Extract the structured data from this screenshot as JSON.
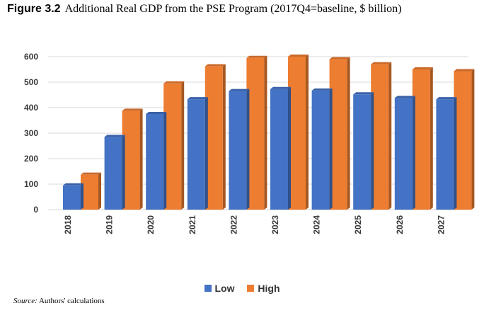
{
  "figure": {
    "label": "Figure 3.2",
    "title": "Additional Real GDP from the PSE Program (2017Q4=baseline, $ billion)"
  },
  "source": {
    "label": "Source:",
    "text": " Authors' calculations"
  },
  "chart_data": {
    "type": "bar",
    "categories": [
      "2018",
      "2019",
      "2020",
      "2021",
      "2022",
      "2023",
      "2024",
      "2025",
      "2026",
      "2027"
    ],
    "series": [
      {
        "name": "Low",
        "values": [
          95,
          285,
          375,
          433,
          465,
          473,
          467,
          452,
          438,
          433
        ],
        "color": "#4472c4"
      },
      {
        "name": "High",
        "values": [
          137,
          388,
          495,
          562,
          595,
          600,
          590,
          570,
          550,
          543
        ],
        "color": "#ed7d31"
      }
    ],
    "y_ticks": [
      "0",
      "100",
      "200",
      "300",
      "400",
      "500",
      "600"
    ],
    "ylim": [
      0,
      600
    ],
    "grid": true,
    "legend_position": "bottom",
    "style": "3d-column"
  }
}
